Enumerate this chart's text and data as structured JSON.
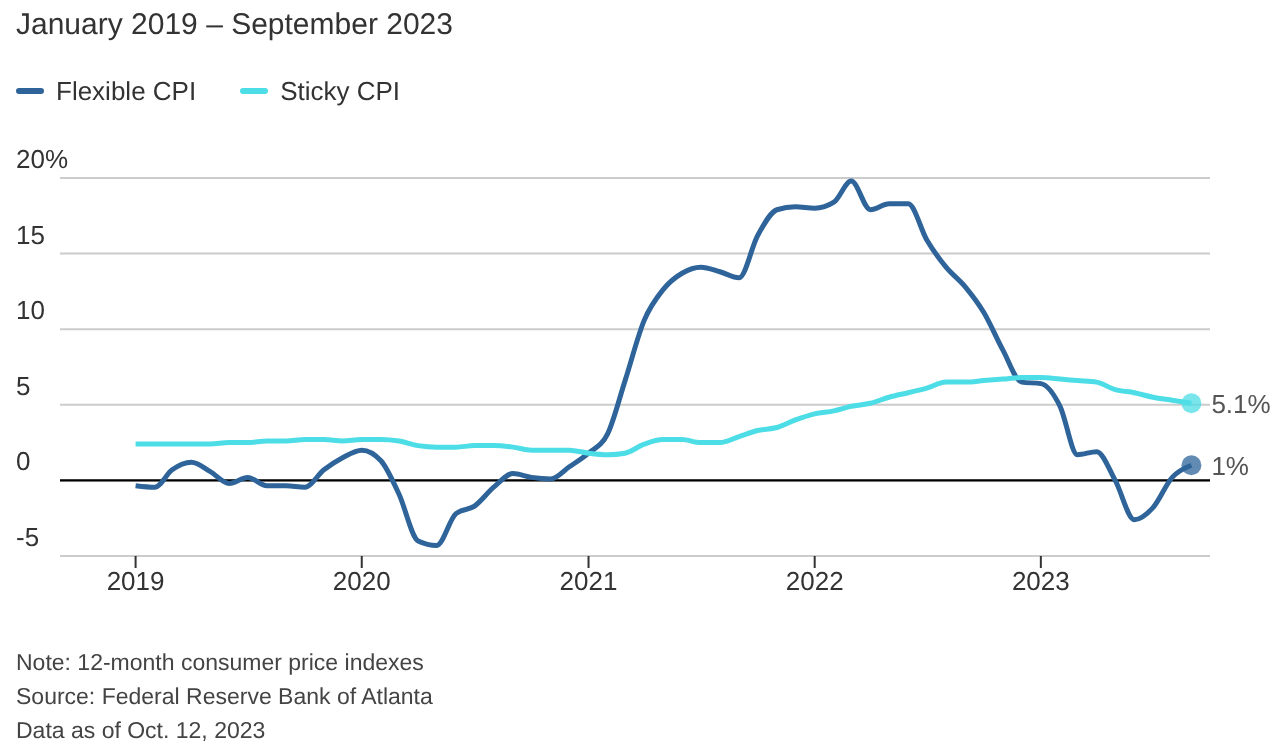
{
  "chart_data": {
    "type": "line",
    "title": "January 2019 – September 2023",
    "x": [
      "2019-01",
      "2019-02",
      "2019-03",
      "2019-04",
      "2019-05",
      "2019-06",
      "2019-07",
      "2019-08",
      "2019-09",
      "2019-10",
      "2019-11",
      "2019-12",
      "2020-01",
      "2020-02",
      "2020-03",
      "2020-04",
      "2020-05",
      "2020-06",
      "2020-07",
      "2020-08",
      "2020-09",
      "2020-10",
      "2020-11",
      "2020-12",
      "2021-01",
      "2021-02",
      "2021-03",
      "2021-04",
      "2021-05",
      "2021-06",
      "2021-07",
      "2021-08",
      "2021-09",
      "2021-10",
      "2021-11",
      "2021-12",
      "2022-01",
      "2022-02",
      "2022-03",
      "2022-04",
      "2022-05",
      "2022-06",
      "2022-07",
      "2022-08",
      "2022-09",
      "2022-10",
      "2022-11",
      "2022-12",
      "2023-01",
      "2023-02",
      "2023-03",
      "2023-04",
      "2023-05",
      "2023-06",
      "2023-07",
      "2023-08",
      "2023-09"
    ],
    "series": [
      {
        "name": "Flexible CPI",
        "color": "#2e6499",
        "values": [
          -0.35,
          -0.45,
          0.7,
          1.2,
          0.6,
          -0.2,
          0.2,
          -0.35,
          -0.35,
          -0.45,
          0.7,
          1.5,
          2.0,
          1.3,
          -0.9,
          -4.0,
          -4.3,
          -2.2,
          -1.7,
          -0.45,
          0.45,
          0.2,
          0.1,
          0.9,
          1.8,
          3.1,
          6.6,
          10.6,
          12.6,
          13.7,
          14.1,
          13.8,
          13.4,
          16.2,
          17.9,
          18.1,
          18.0,
          18.4,
          19.8,
          17.9,
          18.3,
          18.3,
          15.9,
          14.1,
          12.8,
          11.1,
          8.6,
          6.5,
          6.4,
          4.9,
          1.7,
          1.9,
          0,
          -2.6,
          -1.8,
          0.2,
          1.0
        ],
        "value_labels": [
          null,
          null,
          null,
          null,
          null,
          null,
          null,
          null,
          null,
          null,
          null,
          null,
          null,
          null,
          null,
          null,
          null,
          null,
          null,
          null,
          null,
          null,
          null,
          null,
          null,
          null,
          null,
          null,
          null,
          null,
          null,
          null,
          null,
          null,
          null,
          null,
          null,
          null,
          null,
          null,
          null,
          null,
          null,
          null,
          null,
          null,
          null,
          null,
          null,
          null,
          null,
          null,
          null,
          null,
          null,
          null,
          "1%"
        ]
      },
      {
        "name": "Sticky CPI",
        "color": "#4ddde6",
        "values": [
          2.4,
          2.4,
          2.4,
          2.4,
          2.4,
          2.5,
          2.5,
          2.6,
          2.6,
          2.7,
          2.7,
          2.6,
          2.7,
          2.7,
          2.6,
          2.3,
          2.2,
          2.2,
          2.3,
          2.3,
          2.2,
          2.0,
          2.0,
          2.0,
          1.8,
          1.7,
          1.8,
          2.4,
          2.7,
          2.7,
          2.5,
          2.5,
          2.9,
          3.3,
          3.5,
          4.0,
          4.4,
          4.6,
          4.9,
          5.1,
          5.5,
          5.8,
          6.1,
          6.5,
          6.5,
          6.6,
          6.7,
          6.8,
          6.8,
          6.7,
          6.6,
          6.5,
          6.0,
          5.8,
          5.5,
          5.3,
          5.1
        ],
        "value_labels": [
          null,
          null,
          null,
          null,
          null,
          null,
          null,
          null,
          null,
          null,
          null,
          null,
          null,
          null,
          null,
          null,
          null,
          null,
          null,
          null,
          null,
          null,
          null,
          null,
          null,
          null,
          null,
          null,
          null,
          null,
          null,
          null,
          null,
          null,
          null,
          null,
          null,
          null,
          null,
          null,
          null,
          null,
          null,
          null,
          null,
          null,
          null,
          null,
          null,
          null,
          null,
          null,
          null,
          null,
          null,
          null,
          "5.1%"
        ]
      }
    ],
    "xlim": [
      "2018-09",
      "2023-10"
    ],
    "xticks": [
      {
        "value": "2019-01",
        "label": "2019"
      },
      {
        "value": "2020-01",
        "label": "2020"
      },
      {
        "value": "2021-01",
        "label": "2021"
      },
      {
        "value": "2022-01",
        "label": "2022"
      },
      {
        "value": "2023-01",
        "label": "2023"
      }
    ],
    "ylim": [
      -5,
      20
    ],
    "yticks": [
      -5,
      0,
      5,
      10,
      15,
      {
        "value": 20,
        "label": "20%"
      }
    ],
    "ref_lines": [
      {
        "axis": "y",
        "value": 0,
        "color": "#000000"
      }
    ],
    "grid": "y",
    "legend": "top left",
    "marker": "none",
    "line_style": "solid",
    "annotations": [
      "Note: 12-month consumer price indexes",
      "Source: Federal Reserve Bank of Atlanta",
      "Data as of Oct. 12, 2023"
    ]
  }
}
